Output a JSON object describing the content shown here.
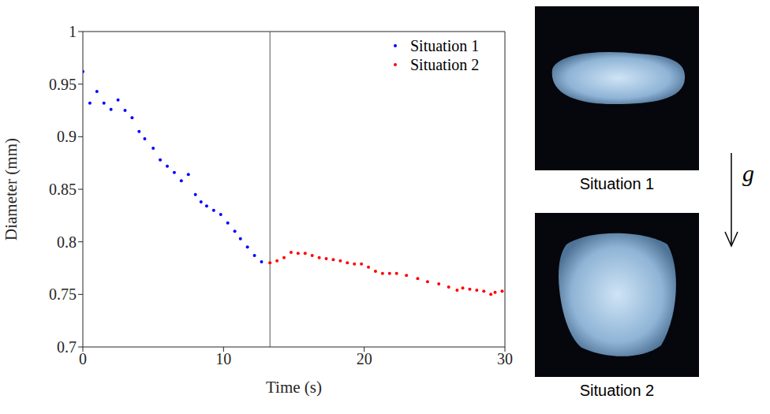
{
  "chart_data": {
    "type": "scatter",
    "x_label": "Time (s)",
    "y_label": "Diameter (mm)",
    "xlim": [
      0,
      30
    ],
    "xticks": [
      0,
      10,
      20,
      30
    ],
    "ylim": [
      0.7,
      1
    ],
    "yticks": [
      0.7,
      0.75,
      0.8,
      0.85,
      0.9,
      0.95,
      1
    ],
    "legend": "upper right",
    "vertical_line_x": 13.3,
    "series": [
      {
        "name": "Situation 1",
        "color": "#0000ff",
        "marker": "circle",
        "x": [
          0,
          0.5,
          1,
          1.5,
          2,
          2.5,
          3,
          3.5,
          4,
          4.4,
          5,
          5.5,
          6,
          6.5,
          7,
          7.5,
          8,
          8.4,
          8.8,
          9.3,
          9.8,
          10.3,
          10.8,
          11.2,
          11.7,
          12.2,
          12.7
        ],
        "values": [
          0.962,
          0.932,
          0.943,
          0.932,
          0.926,
          0.935,
          0.925,
          0.918,
          0.905,
          0.898,
          0.889,
          0.878,
          0.872,
          0.866,
          0.858,
          0.864,
          0.845,
          0.838,
          0.834,
          0.83,
          0.826,
          0.818,
          0.81,
          0.803,
          0.795,
          0.787,
          0.781
        ]
      },
      {
        "name": "Situation 2",
        "color": "#ff0000",
        "marker": "circle",
        "x": [
          13.3,
          13.8,
          14.3,
          14.8,
          15.3,
          15.8,
          16.3,
          16.8,
          17.3,
          17.8,
          18.3,
          18.8,
          19.3,
          19.8,
          20.3,
          20.8,
          21.3,
          21.8,
          22.3,
          23,
          23.8,
          24.5,
          25.3,
          26,
          26.6,
          27,
          27.5,
          28,
          28.5,
          29,
          29.3,
          29.8
        ],
        "values": [
          0.78,
          0.782,
          0.785,
          0.79,
          0.789,
          0.789,
          0.787,
          0.785,
          0.784,
          0.783,
          0.782,
          0.78,
          0.779,
          0.779,
          0.776,
          0.772,
          0.77,
          0.77,
          0.77,
          0.768,
          0.765,
          0.762,
          0.76,
          0.757,
          0.754,
          0.756,
          0.755,
          0.754,
          0.753,
          0.75,
          0.752,
          0.753
        ]
      }
    ]
  },
  "images": [
    {
      "label": "Situation 1"
    },
    {
      "label": "Situation 2"
    }
  ],
  "arrow_label": "g"
}
